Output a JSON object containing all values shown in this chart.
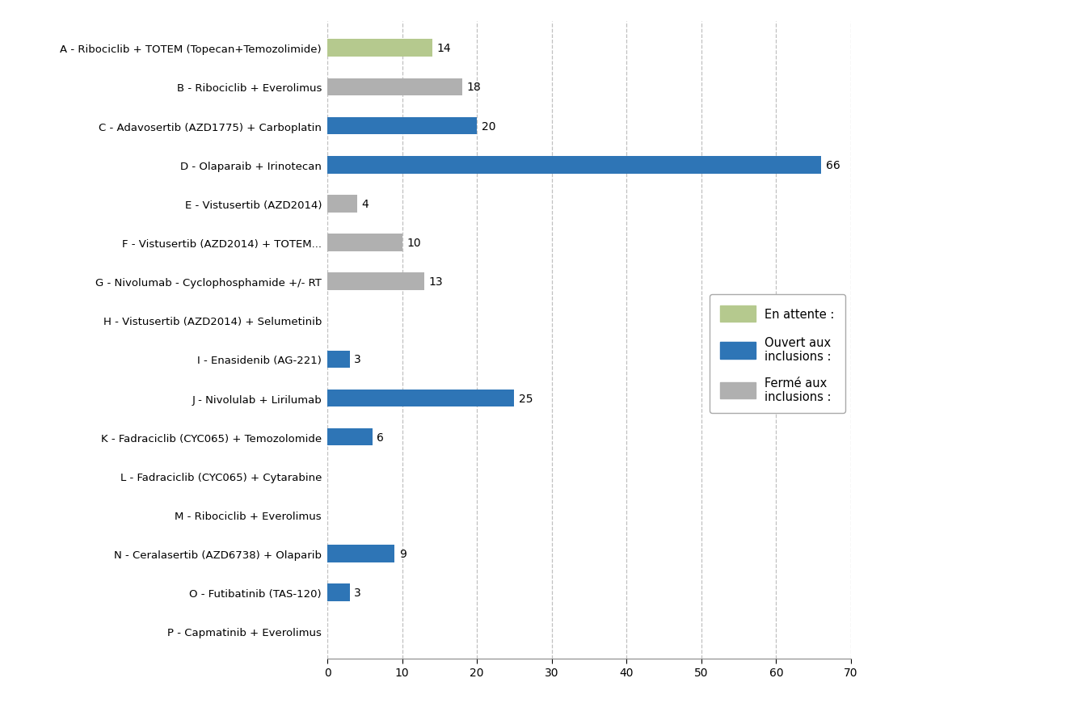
{
  "categories": [
    "A - Ribociclib + TOTEM (Topecan+Temozolimide)",
    "B - Ribociclib + Everolimus",
    "C - Adavosertib (AZD1775) + Carboplatin",
    "D - Olaparaib + Irinotecan",
    "E - Vistusertib (AZD2014)",
    "F - Vistusertib (AZD2014) + TOTEM...",
    "G - Nivolumab - Cyclophosphamide +/- RT",
    "H - Vistusertib (AZD2014) + Selumetinib",
    "I - Enasidenib (AG-221)",
    "J - Nivolulab + Lirilumab",
    "K - Fadraciclib (CYC065) + Temozolomide",
    "L - Fadraciclib (CYC065) + Cytarabine",
    "M - Ribociclib + Everolimus",
    "N - Ceralasertib (AZD6738) + Olaparib",
    "O - Futibatinib (TAS-120)",
    "P - Capmatinib + Everolimus"
  ],
  "values": [
    14,
    18,
    20,
    66,
    4,
    10,
    13,
    0,
    3,
    25,
    6,
    0,
    0,
    9,
    3,
    0
  ],
  "colors": [
    "#b5c98e",
    "#b0b0b0",
    "#2e75b6",
    "#2e75b6",
    "#b0b0b0",
    "#b0b0b0",
    "#b0b0b0",
    "#b0b0b0",
    "#2e75b6",
    "#2e75b6",
    "#2e75b6",
    "#2e75b6",
    "#2e75b6",
    "#2e75b6",
    "#2e75b6",
    "#2e75b6"
  ],
  "xlim": [
    0,
    70
  ],
  "xticks": [
    0,
    10,
    20,
    30,
    40,
    50,
    60,
    70
  ],
  "legend_labels": [
    "En attente :",
    "Ouvert aux\ninclusions :",
    "Fermé aux\ninclusions :"
  ],
  "legend_colors": [
    "#b5c98e",
    "#2e75b6",
    "#b0b0b0"
  ],
  "background_color": "#ffffff",
  "grid_color": "#c0c0c0",
  "bar_height": 0.45,
  "value_fontsize": 10,
  "label_fontsize": 9.5,
  "tick_fontsize": 10
}
